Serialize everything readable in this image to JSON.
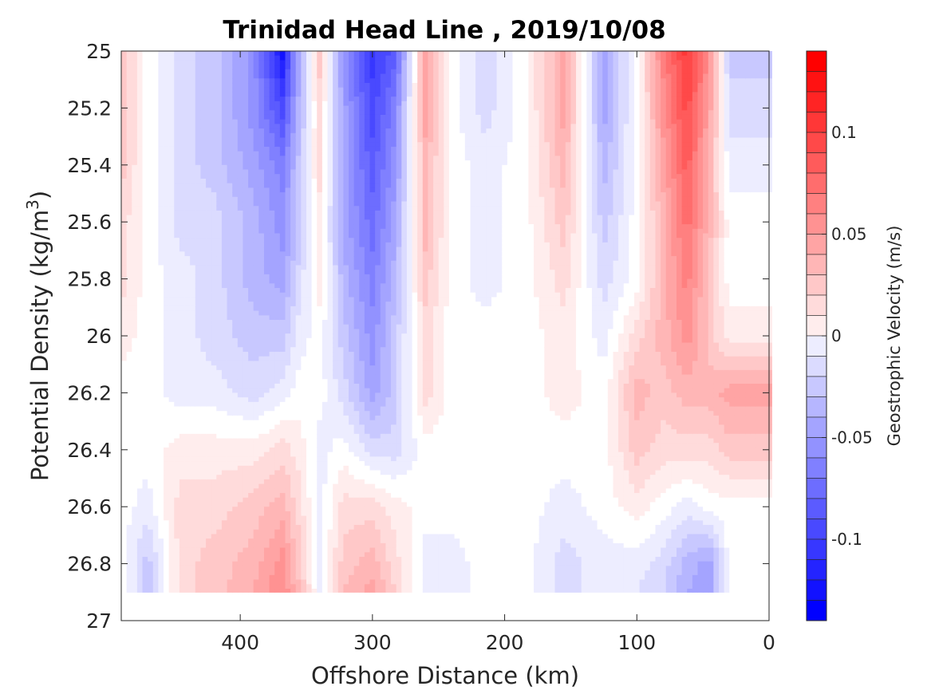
{
  "chart_data": {
    "type": "heatmap",
    "subtype": "filled-contour",
    "title": "Trinidad Head Line , 2019/10/08",
    "xlabel": "Offshore Distance (km)",
    "ylabel_prefix": "Potential Density (kg/m",
    "ylabel_sup": "3",
    "ylabel_suffix": ")",
    "xlim": [
      490,
      0
    ],
    "x_reversed": true,
    "ylim": [
      25,
      27
    ],
    "y_reversed": true,
    "x_ticks": [
      400,
      300,
      200,
      100,
      0
    ],
    "x_tick_labels": [
      "400",
      "300",
      "200",
      "100",
      "0"
    ],
    "y_ticks": [
      25,
      25.2,
      25.4,
      25.6,
      25.8,
      26,
      26.2,
      26.4,
      26.6,
      26.8,
      27
    ],
    "y_tick_labels": [
      "25",
      "25.2",
      "25.4",
      "25.6",
      "25.8",
      "26",
      "26.2",
      "26.4",
      "26.6",
      "26.8",
      "27"
    ],
    "colorbar": {
      "label": "Geostrophic Velocity (m/s)",
      "range": [
        -0.14,
        0.14
      ],
      "step": 0.01,
      "ticks": [
        0.1,
        0.05,
        0,
        -0.05,
        -0.1
      ],
      "tick_labels": [
        "0.1",
        "0.05",
        "0",
        "-0.05",
        "-0.1"
      ],
      "color_negative": "#0000ff",
      "color_zero": "#ffffff",
      "color_positive": "#ff0000"
    },
    "grid": false,
    "data_bottom_density": 26.9,
    "columns": [
      {
        "x": 490,
        "values": [
          0.03,
          0.03,
          0.03,
          0.02,
          0.02,
          0.01,
          0.0,
          0.0,
          0.0,
          0.0,
          0.0
        ]
      },
      {
        "x": 470,
        "values": [
          0.0,
          0.0,
          0.0,
          0.0,
          0.0,
          0.0,
          0.0,
          0.0,
          -0.01,
          -0.03,
          -0.03
        ]
      },
      {
        "x": 445,
        "values": [
          -0.02,
          -0.02,
          -0.02,
          -0.02,
          -0.01,
          -0.01,
          -0.01,
          0.01,
          0.02,
          0.02,
          0.02
        ]
      },
      {
        "x": 420,
        "values": [
          -0.03,
          -0.03,
          -0.03,
          -0.02,
          -0.02,
          -0.02,
          -0.01,
          0.01,
          0.02,
          0.03,
          0.03
        ]
      },
      {
        "x": 390,
        "values": [
          -0.06,
          -0.06,
          -0.05,
          -0.04,
          -0.04,
          -0.03,
          -0.02,
          0.01,
          0.03,
          0.04,
          0.05
        ]
      },
      {
        "x": 368,
        "values": [
          -0.13,
          -0.1,
          -0.07,
          -0.06,
          -0.05,
          -0.03,
          -0.01,
          0.02,
          0.04,
          0.06,
          0.07
        ]
      },
      {
        "x": 355,
        "values": [
          -0.04,
          -0.04,
          -0.03,
          -0.03,
          -0.02,
          -0.01,
          0.0,
          0.01,
          0.02,
          0.03,
          0.04
        ]
      },
      {
        "x": 340,
        "values": [
          0.03,
          0.02,
          0.02,
          0.01,
          0.01,
          0.0,
          0.0,
          -0.01,
          -0.01,
          -0.01,
          0.0
        ]
      },
      {
        "x": 322,
        "values": [
          -0.06,
          -0.05,
          -0.05,
          -0.05,
          -0.04,
          -0.03,
          -0.02,
          0.0,
          0.02,
          0.03,
          0.04
        ]
      },
      {
        "x": 300,
        "values": [
          -0.11,
          -0.1,
          -0.09,
          -0.08,
          -0.07,
          -0.06,
          -0.05,
          -0.02,
          0.02,
          0.04,
          0.06
        ]
      },
      {
        "x": 283,
        "values": [
          -0.09,
          -0.07,
          -0.06,
          -0.05,
          -0.04,
          -0.03,
          -0.03,
          -0.02,
          0.01,
          0.02,
          0.03
        ]
      },
      {
        "x": 260,
        "values": [
          0.05,
          0.05,
          0.04,
          0.04,
          0.03,
          0.02,
          0.02,
          0.0,
          0.0,
          -0.01,
          -0.01
        ]
      },
      {
        "x": 240,
        "values": [
          0.0,
          0.0,
          0.0,
          0.0,
          0.0,
          0.0,
          0.0,
          0.0,
          0.0,
          -0.01,
          -0.01
        ]
      },
      {
        "x": 215,
        "values": [
          -0.02,
          -0.02,
          -0.01,
          -0.01,
          -0.01,
          0.0,
          0.0,
          0.0,
          0.0,
          0.0,
          0.0
        ]
      },
      {
        "x": 185,
        "values": [
          0.0,
          0.0,
          0.0,
          0.0,
          0.0,
          0.0,
          0.0,
          0.0,
          0.0,
          0.0,
          0.0
        ]
      },
      {
        "x": 155,
        "values": [
          0.05,
          0.05,
          0.04,
          0.03,
          0.02,
          0.01,
          0.01,
          0.0,
          -0.01,
          -0.02,
          -0.02
        ]
      },
      {
        "x": 125,
        "values": [
          -0.05,
          -0.05,
          -0.04,
          -0.03,
          -0.02,
          -0.01,
          0.0,
          0.0,
          0.0,
          -0.01,
          -0.01
        ]
      },
      {
        "x": 100,
        "values": [
          0.0,
          0.0,
          0.0,
          0.0,
          0.0,
          0.02,
          0.04,
          0.03,
          0.01,
          -0.01,
          -0.02
        ]
      },
      {
        "x": 80,
        "values": [
          0.07,
          0.06,
          0.05,
          0.04,
          0.04,
          0.04,
          0.03,
          0.02,
          0.0,
          -0.02,
          -0.03
        ]
      },
      {
        "x": 62,
        "values": [
          0.11,
          0.1,
          0.09,
          0.08,
          0.07,
          0.06,
          0.04,
          0.02,
          -0.01,
          -0.04,
          -0.05
        ]
      },
      {
        "x": 45,
        "values": [
          0.06,
          0.05,
          0.04,
          0.04,
          0.03,
          0.03,
          0.04,
          0.02,
          0.0,
          -0.05,
          -0.05
        ]
      },
      {
        "x": 30,
        "values": [
          -0.03,
          -0.02,
          -0.01,
          0.0,
          0.0,
          0.01,
          0.05,
          0.03,
          0.0,
          0.0,
          0.0
        ]
      }
    ]
  }
}
